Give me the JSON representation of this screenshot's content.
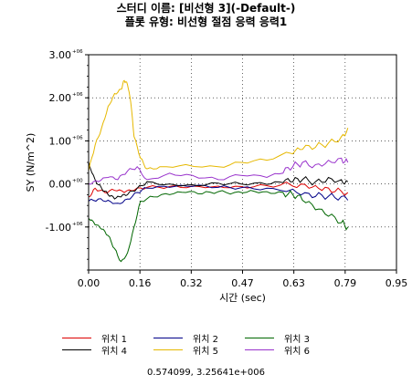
{
  "title": {
    "line1": "스터디 이름: [비선형 3](-Default-)",
    "line2": "플롯 유형: 비선형 절점 응력 응력1"
  },
  "readout": "0.574099, 3.25641e+006",
  "chart_data": {
    "type": "line",
    "xlabel": "시간 (sec)",
    "ylabel": "SY (N/m^2)",
    "xlim": [
      0,
      0.95
    ],
    "ylim": [
      -2000000,
      3000000
    ],
    "x_ticks": [
      "0.00",
      "0.16",
      "0.32",
      "0.47",
      "0.63",
      "0.79",
      "0.95"
    ],
    "y_ticks": [
      {
        "value": 3000000,
        "mantissa": "3.00",
        "exp": "+06"
      },
      {
        "value": 2000000,
        "mantissa": "2.00",
        "exp": "+06"
      },
      {
        "value": 1000000,
        "mantissa": "1.00",
        "exp": "+06"
      },
      {
        "value": 0,
        "mantissa": "0.00",
        "exp": "+00"
      },
      {
        "value": -1000000,
        "mantissa": "-1.00",
        "exp": "+06"
      }
    ],
    "legend_position": "bottom",
    "series": [
      {
        "name": "위치 1",
        "color": "#dd0000",
        "x": [
          0.0,
          0.02,
          0.05,
          0.08,
          0.11,
          0.14,
          0.18,
          0.25,
          0.32,
          0.4,
          0.47,
          0.55,
          0.63,
          0.68,
          0.72,
          0.76,
          0.8
        ],
        "y": [
          -300000,
          -100000,
          -200000,
          -150000,
          -200000,
          -150000,
          -80000,
          -60000,
          -50000,
          -50000,
          -60000,
          -40000,
          -50000,
          -100000,
          -150000,
          -180000,
          -200000
        ]
      },
      {
        "name": "위치 2",
        "color": "#000088",
        "x": [
          0.0,
          0.03,
          0.06,
          0.09,
          0.12,
          0.15,
          0.18,
          0.25,
          0.32,
          0.4,
          0.47,
          0.55,
          0.63,
          0.68,
          0.72,
          0.76,
          0.8
        ],
        "y": [
          -400000,
          -350000,
          -380000,
          -450000,
          -350000,
          -200000,
          -100000,
          -80000,
          -60000,
          -80000,
          -90000,
          -100000,
          -120000,
          -220000,
          -260000,
          -320000,
          -380000
        ]
      },
      {
        "name": "위치 3",
        "color": "#006600",
        "x": [
          0.0,
          0.02,
          0.04,
          0.06,
          0.08,
          0.1,
          0.12,
          0.14,
          0.16,
          0.2,
          0.25,
          0.3,
          0.35,
          0.4,
          0.45,
          0.5,
          0.55,
          0.6,
          0.63,
          0.66,
          0.7,
          0.74,
          0.78,
          0.8
        ],
        "y": [
          -800000,
          -950000,
          -1050000,
          -1200000,
          -1500000,
          -1800000,
          -1600000,
          -1000000,
          -400000,
          -300000,
          -250000,
          -200000,
          -230000,
          -180000,
          -200000,
          -150000,
          -180000,
          -200000,
          -250000,
          -380000,
          -600000,
          -750000,
          -900000,
          -1000000
        ]
      },
      {
        "name": "위치 4",
        "color": "#000000",
        "x": [
          0.0,
          0.02,
          0.04,
          0.06,
          0.08,
          0.1,
          0.12,
          0.15,
          0.18,
          0.25,
          0.32,
          0.4,
          0.47,
          0.55,
          0.6,
          0.63,
          0.66,
          0.7,
          0.74,
          0.78,
          0.8
        ],
        "y": [
          500000,
          100000,
          -100000,
          -250000,
          -350000,
          -300000,
          -250000,
          -100000,
          50000,
          0,
          -20000,
          20000,
          0,
          -10000,
          30000,
          50000,
          100000,
          50000,
          150000,
          100000,
          50000
        ]
      },
      {
        "name": "위치 5",
        "color": "#e6b800",
        "x": [
          0.0,
          0.02,
          0.04,
          0.06,
          0.08,
          0.1,
          0.11,
          0.12,
          0.13,
          0.14,
          0.16,
          0.18,
          0.22,
          0.3,
          0.4,
          0.47,
          0.55,
          0.63,
          0.66,
          0.7,
          0.74,
          0.78,
          0.8
        ],
        "y": [
          300000,
          900000,
          1300000,
          1800000,
          2100000,
          2200000,
          2400000,
          2300000,
          1900000,
          1100000,
          600000,
          350000,
          400000,
          450000,
          400000,
          500000,
          550000,
          700000,
          800000,
          850000,
          950000,
          1100000,
          1300000
        ]
      },
      {
        "name": "위치 6",
        "color": "#9933cc",
        "x": [
          0.0,
          0.03,
          0.06,
          0.09,
          0.12,
          0.15,
          0.18,
          0.25,
          0.32,
          0.4,
          0.47,
          0.55,
          0.6,
          0.63,
          0.66,
          0.7,
          0.74,
          0.78,
          0.8
        ],
        "y": [
          0,
          50000,
          150000,
          100000,
          300000,
          400000,
          100000,
          250000,
          200000,
          100000,
          200000,
          150000,
          250000,
          400000,
          500000,
          450000,
          550000,
          600000,
          500000
        ]
      }
    ]
  }
}
